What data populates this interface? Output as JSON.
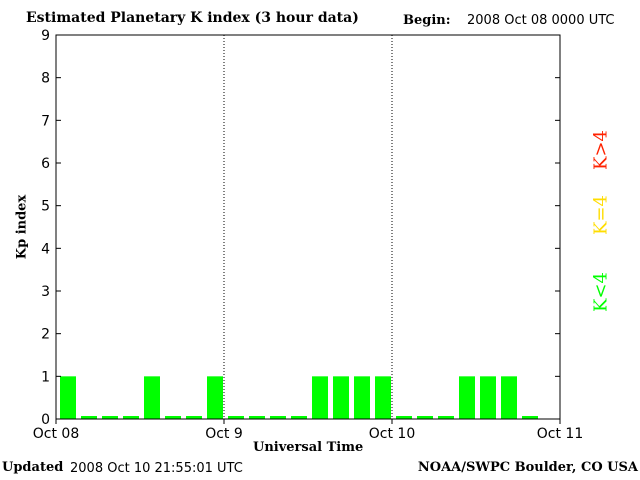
{
  "header": {
    "title": "Estimated Planetary K index (3 hour data)",
    "begin_label": "Begin:",
    "begin_value": "2008 Oct 08 0000 UTC"
  },
  "footer": {
    "updated_label": "Updated",
    "updated_value": "2008 Oct 10 21:55:01 UTC",
    "credit": "NOAA/SWPC Boulder, CO USA"
  },
  "chart_data": {
    "type": "bar",
    "title": "Estimated Planetary K index (3 hour data)",
    "xlabel": "Universal Time",
    "ylabel": "Kp index",
    "ylim": [
      0,
      9
    ],
    "yticks": [
      "0",
      "1",
      "2",
      "3",
      "4",
      "5",
      "6",
      "7",
      "8",
      "9"
    ],
    "xticks": [
      "Oct 08",
      "Oct 9",
      "Oct 10",
      "Oct 11"
    ],
    "day_separators": [
      "Oct 9",
      "Oct 10"
    ],
    "values": [
      1,
      0,
      0,
      0,
      1,
      0,
      0,
      1,
      0,
      0,
      0,
      0,
      1,
      1,
      1,
      1,
      0,
      0,
      0,
      1,
      1,
      1,
      0
    ],
    "legend": [
      {
        "label": "K>4",
        "color": "#ff2200"
      },
      {
        "label": "K=4",
        "color": "#ffdd00"
      },
      {
        "label": "K<4",
        "color": "#00ff00"
      }
    ],
    "bar_color": "#00ff00",
    "grid": false
  }
}
